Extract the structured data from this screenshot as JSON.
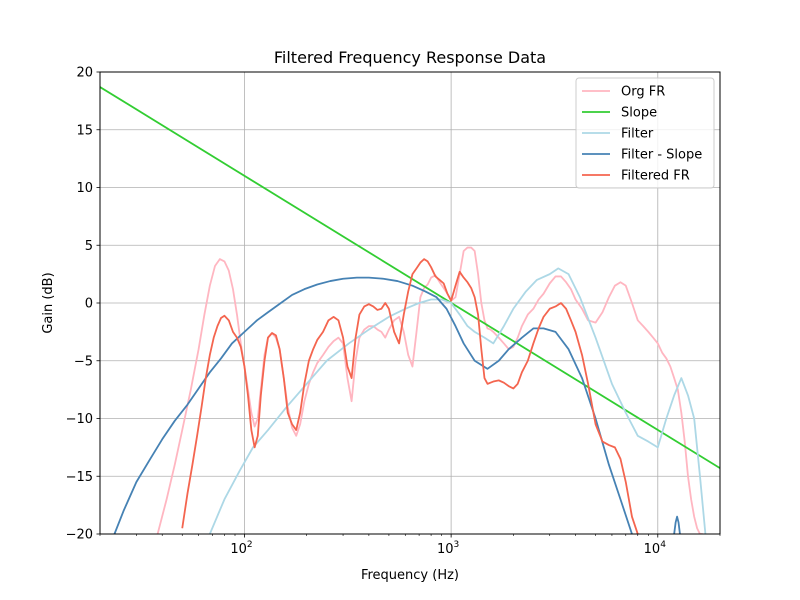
{
  "chart_data": {
    "type": "line",
    "title": "Filtered Frequency Response Data",
    "xlabel": "Frequency (Hz)",
    "ylabel": "Gain (dB)",
    "xscale": "log",
    "xlim": [
      20,
      20000
    ],
    "ylim": [
      -20,
      20
    ],
    "grid": true,
    "legend_placement": "top-right",
    "x_tick_labels": [
      {
        "value": 100,
        "base": "10",
        "exp": "2"
      },
      {
        "value": 1000,
        "base": "10",
        "exp": "3"
      },
      {
        "value": 10000,
        "base": "10",
        "exp": "4"
      }
    ],
    "y_tick_labels": [
      {
        "value": 20,
        "label": "20"
      },
      {
        "value": 15,
        "label": "15"
      },
      {
        "value": 10,
        "label": "10"
      },
      {
        "value": 5,
        "label": "5"
      },
      {
        "value": 0,
        "label": "0"
      },
      {
        "value": -5,
        "label": "−5"
      },
      {
        "value": -10,
        "label": "−10"
      },
      {
        "value": -15,
        "label": "−15"
      },
      {
        "value": -20,
        "label": "−20"
      }
    ],
    "series": [
      {
        "name": "Org FR",
        "color": "#ffb6c1",
        "x": [
          38,
          42,
          46,
          50,
          55,
          60,
          64,
          68,
          72,
          76,
          80,
          84,
          88,
          92,
          96,
          100,
          104,
          108,
          112,
          116,
          120,
          125,
          130,
          136,
          142,
          148,
          155,
          162,
          170,
          178,
          186,
          195,
          205,
          215,
          225,
          240,
          255,
          270,
          285,
          300,
          315,
          330,
          345,
          360,
          380,
          400,
          420,
          440,
          460,
          480,
          500,
          530,
          560,
          590,
          620,
          650,
          680,
          710,
          740,
          770,
          800,
          840,
          880,
          920,
          960,
          1000,
          1050,
          1100,
          1150,
          1200,
          1250,
          1300,
          1350,
          1400,
          1450,
          1500,
          1550,
          1600,
          1700,
          1800,
          1900,
          2000,
          2100,
          2200,
          2350,
          2500,
          2650,
          2800,
          3000,
          3200,
          3400,
          3600,
          3800,
          4000,
          4300,
          4600,
          5000,
          5400,
          5800,
          6200,
          6600,
          7000,
          7500,
          8000,
          8500,
          9000,
          9500,
          10000,
          10500,
          11000,
          11500,
          12000,
          12500,
          13000,
          13500,
          14000,
          14500,
          15000,
          15500,
          16000,
          16500
        ],
        "values": [
          -20,
          -17,
          -14,
          -11,
          -7.5,
          -4,
          -1,
          1.5,
          3.2,
          3.8,
          3.6,
          2.8,
          1.2,
          -1,
          -3.5,
          -5.5,
          -7.5,
          -9.5,
          -10.7,
          -10,
          -7.5,
          -4.5,
          -3,
          -2.6,
          -3,
          -4,
          -6.5,
          -9,
          -10.8,
          -11.5,
          -10.5,
          -8.5,
          -7,
          -6,
          -5.2,
          -4.5,
          -3.8,
          -3.3,
          -3,
          -3.5,
          -6.5,
          -8.5,
          -5,
          -3,
          -2.3,
          -2,
          -2,
          -2.3,
          -2.5,
          -3,
          -2.3,
          -1.5,
          -1.2,
          -2.5,
          -4.5,
          -5.5,
          -2.5,
          0.5,
          1.3,
          1.6,
          2.2,
          2.4,
          1.8,
          1.3,
          0.8,
          0.2,
          0.5,
          2.5,
          4.5,
          4.8,
          4.8,
          4.5,
          2.5,
          0,
          -1.5,
          -2.2,
          -2.3,
          -2.5,
          -3,
          -3.5,
          -4,
          -3.8,
          -3,
          -2,
          -1,
          -0.5,
          0.3,
          0.8,
          1.7,
          2.3,
          2.3,
          1.8,
          1.2,
          0.3,
          -0.5,
          -1.5,
          -1.7,
          -0.8,
          0.5,
          1.5,
          1.8,
          1.5,
          0,
          -1.5,
          -2,
          -2.5,
          -3,
          -3.5,
          -4.3,
          -4.8,
          -5.5,
          -6.5,
          -7.5,
          -9.5,
          -12,
          -15,
          -17,
          -18.5,
          -19.5,
          -20,
          -20
        ]
      },
      {
        "name": "Slope",
        "color": "#32cd32",
        "x": [
          20,
          20000
        ],
        "values": [
          18.7,
          -14.3
        ]
      },
      {
        "name": "Filter",
        "color": "#add8e6",
        "x": [
          68,
          80,
          95,
          110,
          130,
          160,
          200,
          250,
          320,
          400,
          500,
          600,
          700,
          800,
          900,
          1000,
          1100,
          1200,
          1300,
          1450,
          1600,
          1800,
          2000,
          2300,
          2600,
          3000,
          3300,
          3700,
          4200,
          5000,
          6000,
          7000,
          8000,
          9000,
          10000,
          11000,
          12000,
          13000,
          14000,
          15000,
          16000,
          17000
        ],
        "values": [
          -20,
          -17,
          -14.5,
          -12.5,
          -11,
          -9,
          -7,
          -5,
          -3.5,
          -2.3,
          -1.2,
          -0.5,
          0,
          0.3,
          0.3,
          0,
          -1,
          -2,
          -2.5,
          -3,
          -3.5,
          -2,
          -0.5,
          1,
          2,
          2.5,
          3,
          2.5,
          0.5,
          -3,
          -7,
          -9.5,
          -11.5,
          -12,
          -12.5,
          -10,
          -8,
          -6.5,
          -8,
          -10,
          -15,
          -20
        ]
      },
      {
        "name": "Filter - Slope",
        "color": "#4682b4",
        "x": [
          23.5,
          26,
          30,
          35,
          40,
          46,
          53,
          60,
          68,
          77,
          87,
          100,
          115,
          130,
          150,
          170,
          195,
          225,
          260,
          300,
          350,
          400,
          470,
          550,
          650,
          750,
          850,
          950,
          1050,
          1150,
          1300,
          1500,
          1700,
          1900,
          2200,
          2500,
          2800,
          3200,
          3700,
          4300,
          5000,
          5800,
          6600,
          7500,
          8500,
          9500,
          10500,
          11500,
          12000,
          12200,
          12400,
          12600,
          12800,
          13000
        ],
        "values": [
          -20,
          -18,
          -15.5,
          -13.5,
          -11.8,
          -10.2,
          -8.8,
          -7.4,
          -6,
          -4.8,
          -3.5,
          -2.5,
          -1.5,
          -0.8,
          0,
          0.7,
          1.2,
          1.6,
          1.9,
          2.1,
          2.2,
          2.2,
          2.1,
          1.9,
          1.5,
          1,
          0.5,
          -0.5,
          -2,
          -3.5,
          -5,
          -5.7,
          -5,
          -4,
          -3,
          -2.2,
          -2.2,
          -2.5,
          -4,
          -6.5,
          -10,
          -14,
          -17,
          -20,
          -22,
          -22,
          -22,
          -21,
          -20,
          -19,
          -18.5,
          -19,
          -20,
          -21
        ]
      },
      {
        "name": "Filtered FR",
        "color": "#f4654f",
        "x": [
          50,
          53,
          56,
          59,
          62,
          65,
          68,
          71,
          74,
          77,
          80,
          84,
          88,
          92,
          96,
          100,
          104,
          108,
          112,
          116,
          120,
          125,
          130,
          136,
          142,
          148,
          155,
          162,
          170,
          178,
          186,
          195,
          205,
          215,
          225,
          240,
          255,
          270,
          285,
          300,
          315,
          330,
          345,
          360,
          380,
          400,
          420,
          440,
          460,
          480,
          500,
          530,
          560,
          590,
          620,
          650,
          680,
          710,
          740,
          770,
          800,
          840,
          880,
          920,
          960,
          1000,
          1050,
          1100,
          1150,
          1200,
          1250,
          1300,
          1350,
          1400,
          1450,
          1500,
          1550,
          1600,
          1700,
          1800,
          1900,
          2000,
          2100,
          2200,
          2350,
          2500,
          2650,
          2800,
          3000,
          3200,
          3400,
          3600,
          3800,
          4000,
          4300,
          4600,
          5000,
          5400,
          5800,
          6200,
          6600,
          7000,
          7500,
          8000
        ],
        "values": [
          -19.5,
          -16.5,
          -14,
          -11.5,
          -9,
          -6.5,
          -4.5,
          -3,
          -2,
          -1.3,
          -1.1,
          -1.5,
          -2.5,
          -3,
          -3.8,
          -5.5,
          -8,
          -11,
          -12.5,
          -11.5,
          -8,
          -5,
          -3,
          -2.6,
          -2.8,
          -4,
          -6.5,
          -9.5,
          -10.5,
          -11,
          -9.5,
          -7,
          -5,
          -4,
          -3.2,
          -2.5,
          -1.5,
          -1.2,
          -1.5,
          -3,
          -5.5,
          -6.5,
          -3,
          -1,
          -0.3,
          -0.1,
          -0.3,
          -0.6,
          -0.5,
          0,
          -0.5,
          -2.5,
          -3.5,
          -1,
          1,
          2.5,
          3,
          3.5,
          3.8,
          3.6,
          3.1,
          2.3,
          2,
          1.7,
          0.8,
          0.2,
          1.5,
          2.7,
          2.2,
          1.8,
          1.3,
          0.5,
          -1,
          -4,
          -6.5,
          -7,
          -6.9,
          -6.8,
          -6.7,
          -6.9,
          -7.2,
          -7.4,
          -7,
          -6,
          -5,
          -3.5,
          -2.2,
          -1.2,
          -0.5,
          -0.3,
          0,
          -0.5,
          -1.5,
          -2.5,
          -4.5,
          -7,
          -10.5,
          -12,
          -12.3,
          -12.5,
          -13.5,
          -15.5,
          -18.5,
          -20
        ]
      }
    ]
  }
}
